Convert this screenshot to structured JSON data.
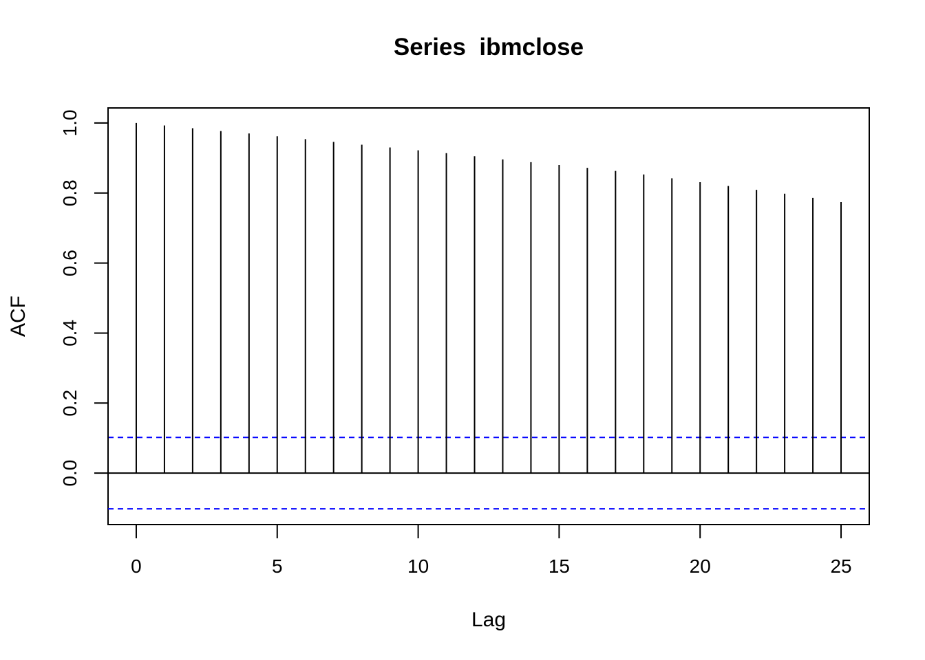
{
  "chart_data": {
    "type": "acf",
    "title": "Series  ibmclose",
    "xlabel": "Lag",
    "ylabel": "ACF",
    "xlim": [
      -1,
      26
    ],
    "ylim": [
      -0.147,
      1.043
    ],
    "x_ticks": [
      0,
      5,
      10,
      15,
      20,
      25
    ],
    "x_tick_labels": [
      "0",
      "5",
      "10",
      "15",
      "20",
      "25"
    ],
    "y_ticks": [
      0.0,
      0.2,
      0.4,
      0.6,
      0.8,
      1.0
    ],
    "y_tick_labels": [
      "0.0",
      "0.2",
      "0.4",
      "0.6",
      "0.8",
      "1.0"
    ],
    "lags": [
      0,
      1,
      2,
      3,
      4,
      5,
      6,
      7,
      8,
      9,
      10,
      11,
      12,
      13,
      14,
      15,
      16,
      17,
      18,
      19,
      20,
      21,
      22,
      23,
      24,
      25
    ],
    "acf": [
      1.0,
      0.993,
      0.985,
      0.977,
      0.97,
      0.962,
      0.954,
      0.946,
      0.938,
      0.93,
      0.922,
      0.914,
      0.905,
      0.896,
      0.888,
      0.88,
      0.872,
      0.863,
      0.853,
      0.842,
      0.831,
      0.82,
      0.809,
      0.798,
      0.786,
      0.774
    ],
    "confidence_bound": 0.102,
    "colors": {
      "bars": "#000000",
      "confidence": "#0000ff",
      "zero_line": "#000000",
      "frame": "#000000"
    },
    "grid": false,
    "legend": "none"
  }
}
